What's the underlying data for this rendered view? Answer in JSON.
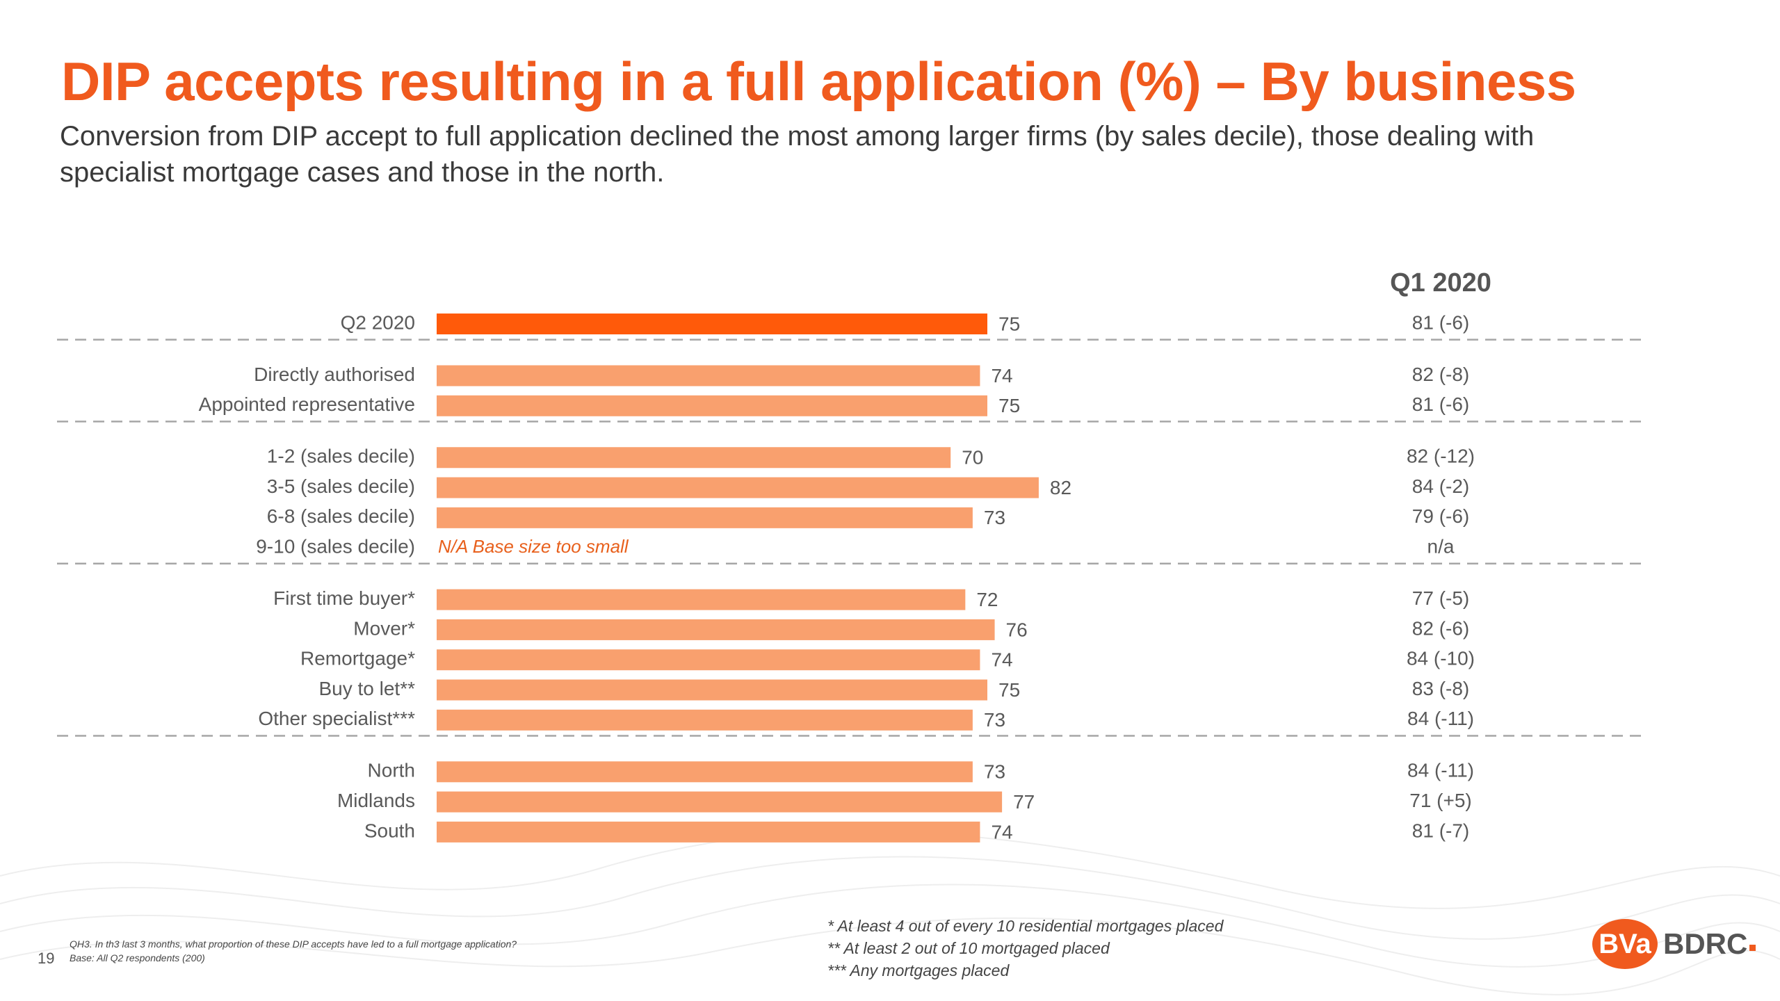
{
  "title": "DIP accepts resulting in a full application (%) – By business",
  "subtitle": "Conversion from DIP accept to full application declined the most among larger firms (by sales decile), those dealing with specialist mortgage cases and those in the north.",
  "colors": {
    "title": "#F05A1E",
    "highlight_bar": "#FF5A0A",
    "bar": "#F9A06E",
    "na_text": "#E8601C",
    "divider": "#a6a6a6"
  },
  "chart_data": {
    "type": "bar",
    "orientation": "horizontal",
    "xlim": [
      0,
      100
    ],
    "comparison_header": "Q1 2020",
    "groups": [
      {
        "rows": [
          {
            "label": "Q2 2020",
            "value": 75,
            "highlight": true,
            "q1": "81 (-6)"
          }
        ]
      },
      {
        "rows": [
          {
            "label": "Directly authorised",
            "value": 74,
            "q1": "82 (-8)"
          },
          {
            "label": "Appointed representative",
            "value": 75,
            "q1": "81 (-6)"
          }
        ]
      },
      {
        "rows": [
          {
            "label": "1-2 (sales decile)",
            "value": 70,
            "q1": "82 (-12)"
          },
          {
            "label": "3-5 (sales decile)",
            "value": 82,
            "q1": "84 (-2)"
          },
          {
            "label": "6-8 (sales decile)",
            "value": 73,
            "q1": "79 (-6)"
          },
          {
            "label": "9-10 (sales decile)",
            "value": null,
            "note": "N/A Base size too small",
            "q1": "n/a"
          }
        ]
      },
      {
        "rows": [
          {
            "label": "First time buyer*",
            "value": 72,
            "q1": "77 (-5)"
          },
          {
            "label": "Mover*",
            "value": 76,
            "q1": "82 (-6)"
          },
          {
            "label": "Remortgage*",
            "value": 74,
            "q1": "84 (-10)"
          },
          {
            "label": "Buy to let**",
            "value": 75,
            "q1": "83 (-8)"
          },
          {
            "label": "Other specialist***",
            "value": 73,
            "q1": "84 (-11)"
          }
        ]
      },
      {
        "rows": [
          {
            "label": "North",
            "value": 73,
            "q1": "84 (-11)"
          },
          {
            "label": "Midlands",
            "value": 77,
            "q1": "71 (+5)"
          },
          {
            "label": "South",
            "value": 74,
            "q1": "81 (-7)"
          }
        ]
      }
    ]
  },
  "footnotes": [
    "* At least 4 out of every 10 residential mortgages placed",
    "** At least 2 out of 10 mortgaged placed",
    "*** Any mortgages placed"
  ],
  "question_text": "QH3. In th3 last 3 months, what proportion of these DIP accepts have led to a full mortgage application?",
  "base_text": "Base: All Q2 respondents (200)",
  "page_number": "19",
  "logo": {
    "mark": "BVa",
    "wordmark": "BDRC"
  }
}
